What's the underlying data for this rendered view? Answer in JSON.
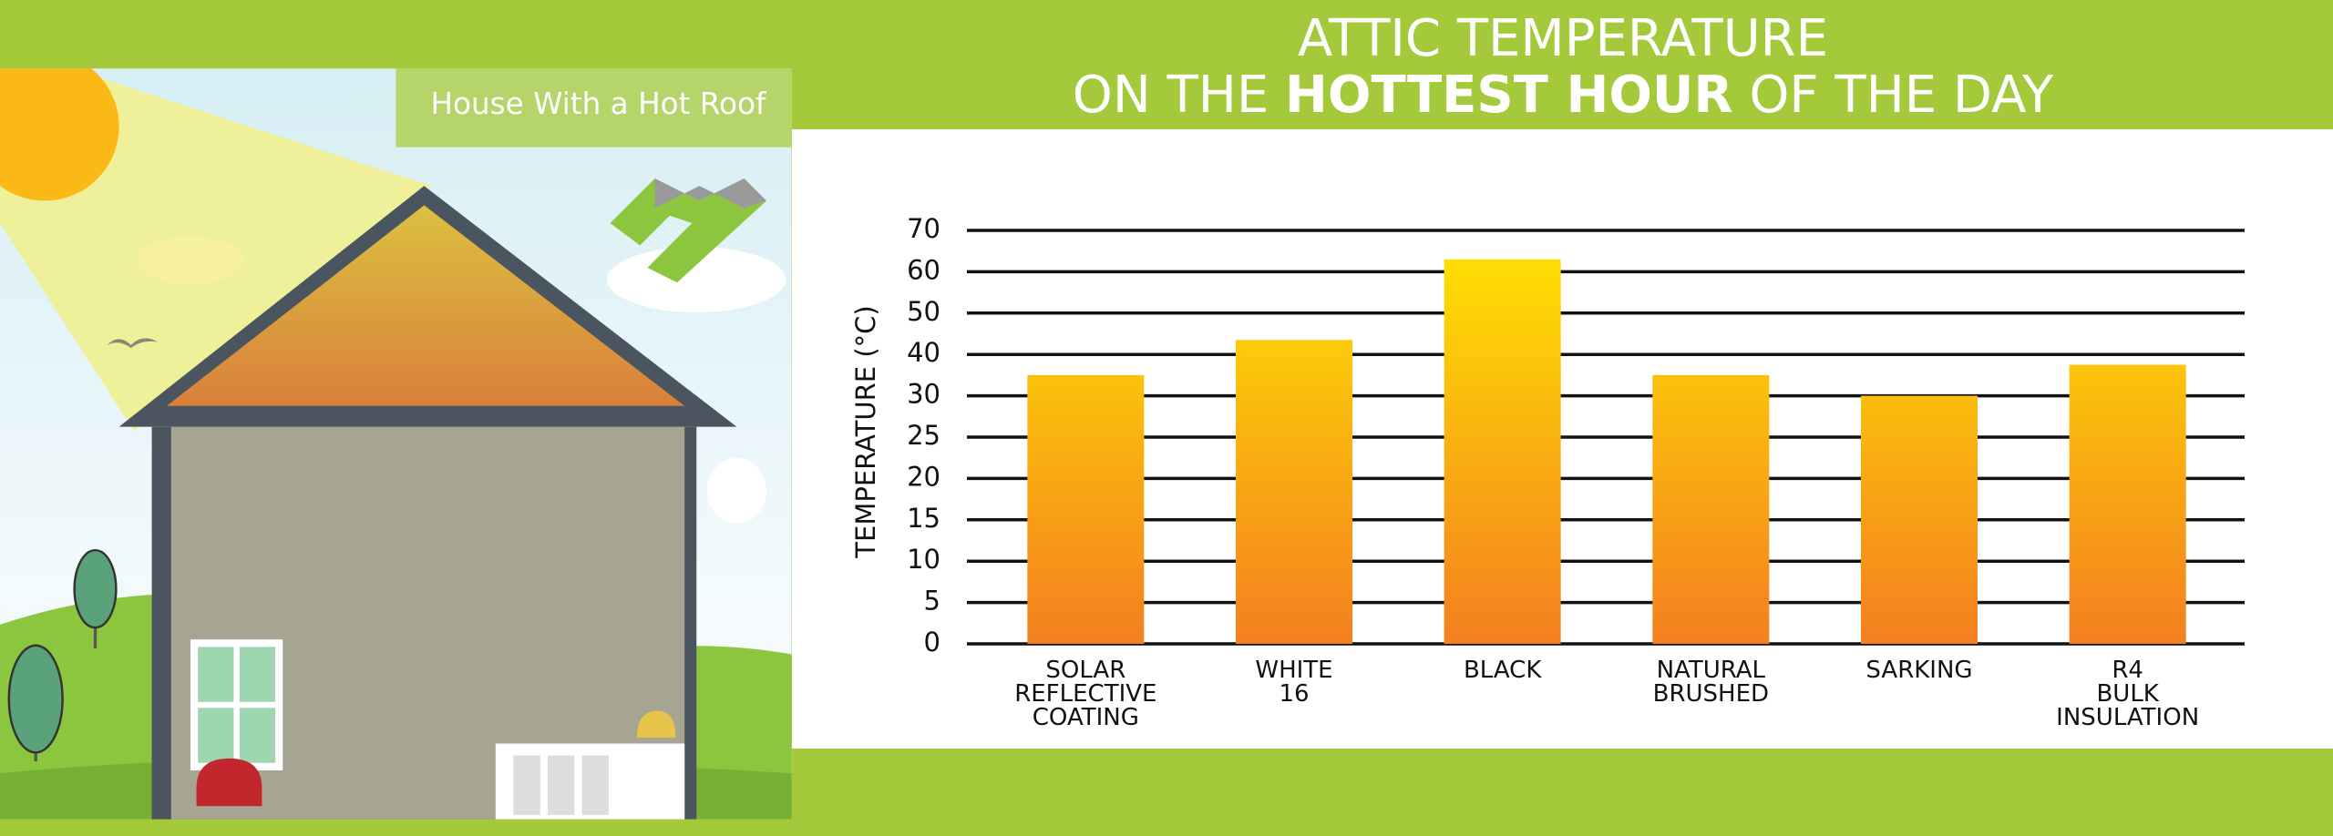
{
  "panel_label": "House With a Hot Roof",
  "chart_data": {
    "type": "bar",
    "title": {
      "line1": "ATTIC TEMPERATURE",
      "line2_before": "ON THE",
      "line2_bold": "HOTTEST HOUR",
      "line2_after": "OF THE DAY"
    },
    "y_label": "TEMPERATURE (°C)",
    "categories": [
      "SOLAR\nREFLECTIVE\nCOATING",
      "WHITE\n16",
      "BLACK",
      "NATURAL\nBRUSHED",
      "SARKING",
      "R4\nBULK\nINSULATION"
    ],
    "values": [
      35,
      43.5,
      63,
      35,
      30,
      37.5
    ],
    "gradient": [
      "#ffe600",
      "#f47f20"
    ],
    "ylim": [
      0,
      70
    ],
    "yticks": [
      0,
      5,
      10,
      15,
      20,
      25,
      30,
      40,
      50,
      60,
      70
    ],
    "grid": true
  }
}
